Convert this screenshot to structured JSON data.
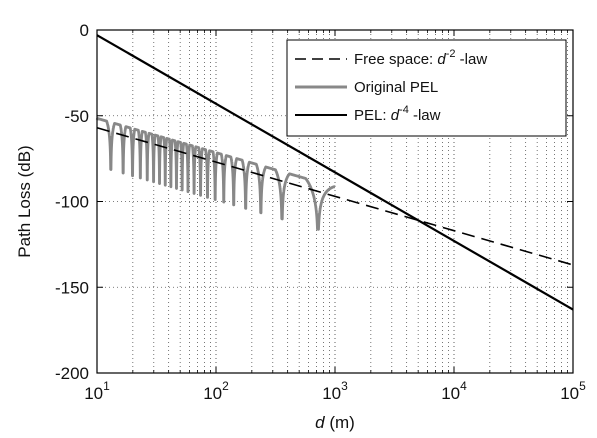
{
  "chart_data": {
    "type": "line",
    "xscale": "log",
    "xlim": [
      10,
      100000
    ],
    "ylim": [
      -200,
      0
    ],
    "grid": true,
    "grid_style": "dotted",
    "legend_position": "top-right",
    "xlabel_var": "d",
    "xlabel_unit": " (m)",
    "ylabel": "Path Loss (dB)",
    "x_ticks": [
      {
        "value": 10,
        "base": "10",
        "exp": "1"
      },
      {
        "value": 100,
        "base": "10",
        "exp": "2"
      },
      {
        "value": 1000,
        "base": "10",
        "exp": "3"
      },
      {
        "value": 10000,
        "base": "10",
        "exp": "4"
      },
      {
        "value": 100000,
        "base": "10",
        "exp": "5"
      }
    ],
    "y_ticks": [
      {
        "value": 0,
        "label": "0"
      },
      {
        "value": -50,
        "label": "-50"
      },
      {
        "value": -100,
        "label": "-100"
      },
      {
        "value": -150,
        "label": "-150"
      },
      {
        "value": -200,
        "label": "-200"
      }
    ],
    "series": [
      {
        "legend_pre": "Free space: ",
        "legend_var": "d",
        "legend_exp": "-2",
        "legend_post": " -law",
        "style": "dashed",
        "color": "#000000",
        "x": [
          10,
          100000
        ],
        "y": [
          -57,
          -137
        ]
      },
      {
        "legend_pre": "Original PEL",
        "legend_var": "",
        "legend_exp": "",
        "legend_post": "",
        "style": "solid",
        "color": "#888888",
        "x": [
          10,
          100000
        ],
        "y": [
          -57,
          -137
        ]
      },
      {
        "legend_pre": "PEL: ",
        "legend_var": "d",
        "legend_exp": "-4",
        "legend_post": " -law",
        "style": "solid",
        "color": "#000000",
        "x": [
          10,
          100000
        ],
        "y": [
          -3,
          -163
        ]
      }
    ]
  }
}
